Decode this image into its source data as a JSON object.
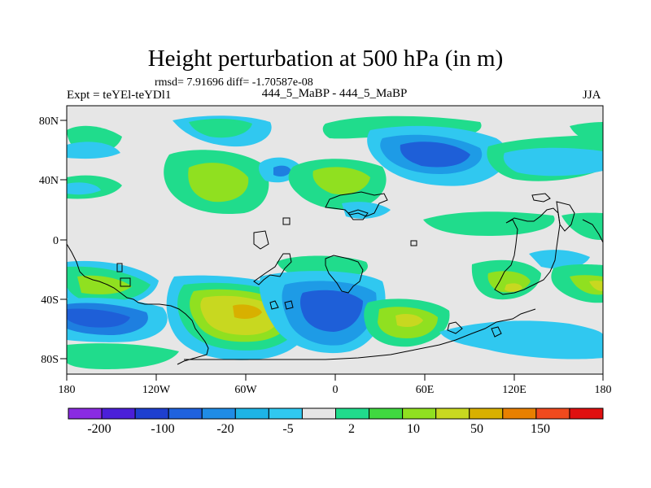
{
  "header": {
    "title": "Height perturbation at 500 hPa (in m)",
    "stats": "rmsd= 7.91696 diff= -1.70587e-08",
    "experiment": "Expt = teYEl-teYDl1",
    "center_label": "444_5_MaBP - 444_5_MaBP",
    "season": "JJA"
  },
  "map": {
    "x_ticks": [
      "180",
      "120W",
      "60W",
      "0",
      "60E",
      "120E",
      "180"
    ],
    "y_ticks": [
      "80N",
      "40N",
      "0",
      "40S",
      "80S"
    ],
    "background_color": "#e6e6e6"
  },
  "colorbar": {
    "labels": [
      "-200",
      "-100",
      "-20",
      "-5",
      "2",
      "10",
      "50",
      "150"
    ],
    "colors": [
      "#8a2be2",
      "#4b1fd8",
      "#1e3fcf",
      "#1f62de",
      "#1f8ce6",
      "#1eb4e6",
      "#30c8f0",
      "#e6e6e6",
      "#20dc8c",
      "#40d840",
      "#90e020",
      "#c8d820",
      "#d8b000",
      "#e88000",
      "#f04a1e",
      "#e01010"
    ]
  }
}
